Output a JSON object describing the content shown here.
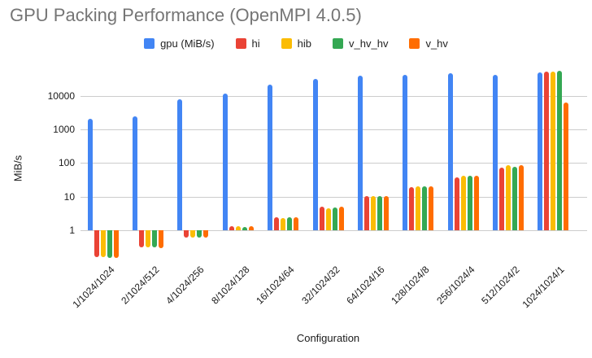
{
  "title": "GPU Packing Performance (OpenMPI 4.0.5)",
  "chart_data": {
    "type": "bar",
    "title": "GPU Packing Performance (OpenMPI 4.0.5)",
    "xlabel": "Configuration",
    "ylabel": "MiB/s",
    "y_scale": "log",
    "y_ticks": [
      1,
      10,
      100,
      1000,
      10000
    ],
    "ylim": [
      0.1,
      60000
    ],
    "grid": true,
    "legend_position": "top",
    "categories": [
      "1/1024/1024",
      "2/1024/512",
      "4/1024/256",
      "8/1024/128",
      "16/1024/64",
      "32/1024/32",
      "64/1024/16",
      "128/1024/8",
      "256/1024/4",
      "512/1024/2",
      "1024/1024/1"
    ],
    "series": [
      {
        "name": "gpu (MiB/s)",
        "color": "#4285F4",
        "values": [
          2100,
          2400,
          8000,
          12000,
          22000,
          32000,
          40000,
          41000,
          47000,
          43000,
          50000
        ]
      },
      {
        "name": "hi",
        "color": "#EA4335",
        "values": [
          0.16,
          0.31,
          0.6,
          1.3,
          2.4,
          4.9,
          10.5,
          19,
          38,
          74,
          54000
        ]
      },
      {
        "name": "hib",
        "color": "#FBBC04",
        "values": [
          0.16,
          0.31,
          0.6,
          1.3,
          2.3,
          4.5,
          10.2,
          20,
          42,
          85,
          54000
        ]
      },
      {
        "name": "v_hv_hv",
        "color": "#34A853",
        "values": [
          0.15,
          0.31,
          0.6,
          1.25,
          2.4,
          4.7,
          10.5,
          20,
          41,
          77,
          56000
        ]
      },
      {
        "name": "v_hv",
        "color": "#FF6D01",
        "values": [
          0.15,
          0.3,
          0.6,
          1.3,
          2.5,
          5.1,
          10.5,
          20,
          42,
          85,
          6300
        ]
      }
    ]
  }
}
